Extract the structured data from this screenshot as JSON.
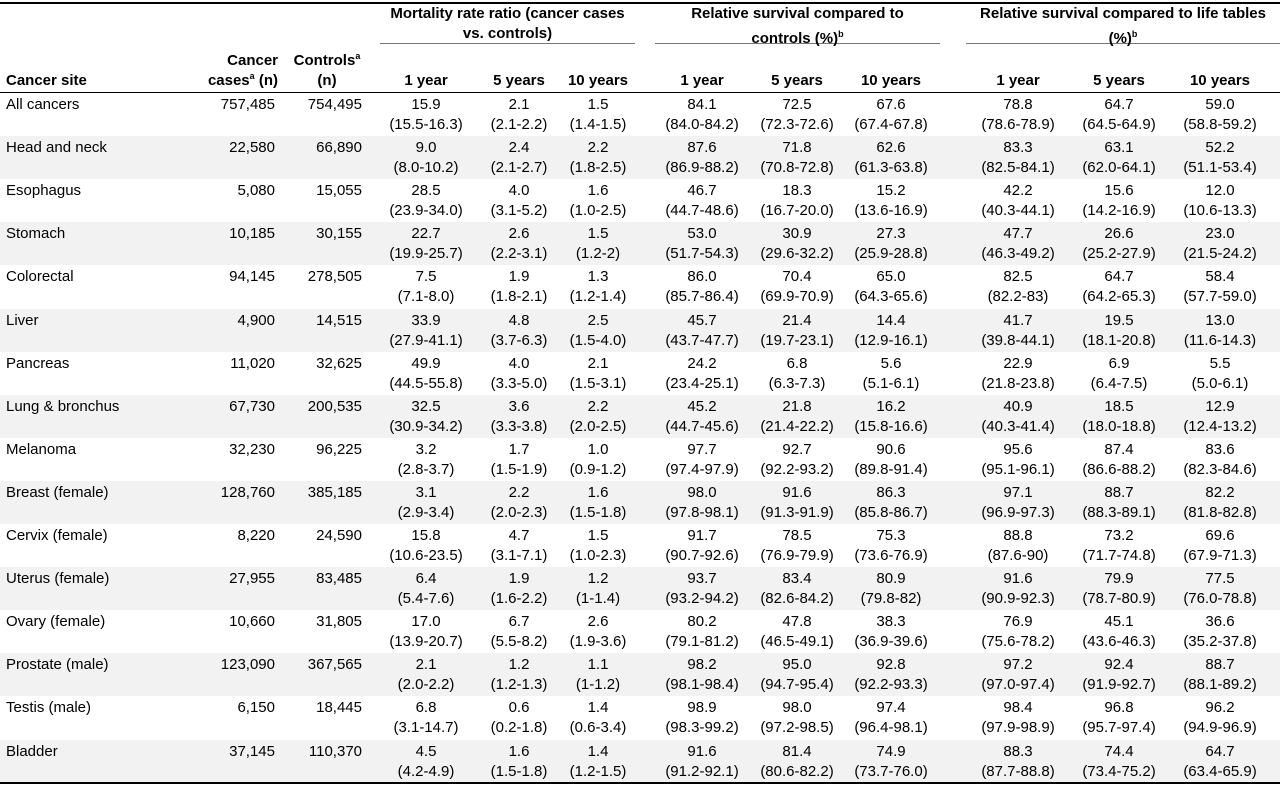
{
  "header": {
    "cancer_site": "Cancer site",
    "cases_line1": "Cancer",
    "cases_line2_pre": "cases",
    "cases_line2_sup": "a",
    "cases_line2_post": " (n)",
    "controls_line1_pre": "Controls",
    "controls_line1_sup": "a",
    "controls_line2": "(n)",
    "groups": [
      {
        "line1": "Mortality rate ratio (cancer cases",
        "line2": "vs. controls)",
        "sup": ""
      },
      {
        "line1": "Relative survival compared to",
        "line2": "controls (%)",
        "sup": "b"
      },
      {
        "line1": "Relative survival compared to life tables",
        "line2": "(%)",
        "sup": "b"
      }
    ],
    "sub": [
      "1 year",
      "5 years",
      "10 years"
    ]
  },
  "rows": [
    {
      "site": "All cancers",
      "cases": "757,485",
      "controls": "754,495",
      "stats": [
        [
          "15.9",
          "(15.5-16.3)"
        ],
        [
          "2.1",
          "(2.1-2.2)"
        ],
        [
          "1.5",
          "(1.4-1.5)"
        ],
        [
          "84.1",
          "(84.0-84.2)"
        ],
        [
          "72.5",
          "(72.3-72.6)"
        ],
        [
          "67.6",
          "(67.4-67.8)"
        ],
        [
          "78.8",
          "(78.6-78.9)"
        ],
        [
          "64.7",
          "(64.5-64.9)"
        ],
        [
          "59.0",
          "(58.8-59.2)"
        ]
      ]
    },
    {
      "site": "Head and neck",
      "cases": "22,580",
      "controls": "66,890",
      "stats": [
        [
          "9.0",
          "(8.0-10.2)"
        ],
        [
          "2.4",
          "(2.1-2.7)"
        ],
        [
          "2.2",
          "(1.8-2.5)"
        ],
        [
          "87.6",
          "(86.9-88.2)"
        ],
        [
          "71.8",
          "(70.8-72.8)"
        ],
        [
          "62.6",
          "(61.3-63.8)"
        ],
        [
          "83.3",
          "(82.5-84.1)"
        ],
        [
          "63.1",
          "(62.0-64.1)"
        ],
        [
          "52.2",
          "(51.1-53.4)"
        ]
      ]
    },
    {
      "site": "Esophagus",
      "cases": "5,080",
      "controls": "15,055",
      "stats": [
        [
          "28.5",
          "(23.9-34.0)"
        ],
        [
          "4.0",
          "(3.1-5.2)"
        ],
        [
          "1.6",
          "(1.0-2.5)"
        ],
        [
          "46.7",
          "(44.7-48.6)"
        ],
        [
          "18.3",
          "(16.7-20.0)"
        ],
        [
          "15.2",
          "(13.6-16.9)"
        ],
        [
          "42.2",
          "(40.3-44.1)"
        ],
        [
          "15.6",
          "(14.2-16.9)"
        ],
        [
          "12.0",
          "(10.6-13.3)"
        ]
      ]
    },
    {
      "site": "Stomach",
      "cases": "10,185",
      "controls": "30,155",
      "stats": [
        [
          "22.7",
          "(19.9-25.7)"
        ],
        [
          "2.6",
          "(2.2-3.1)"
        ],
        [
          "1.5",
          "(1.2-2)"
        ],
        [
          "53.0",
          "(51.7-54.3)"
        ],
        [
          "30.9",
          "(29.6-32.2)"
        ],
        [
          "27.3",
          "(25.9-28.8)"
        ],
        [
          "47.7",
          "(46.3-49.2)"
        ],
        [
          "26.6",
          "(25.2-27.9)"
        ],
        [
          "23.0",
          "(21.5-24.2)"
        ]
      ]
    },
    {
      "site": "Colorectal",
      "cases": "94,145",
      "controls": "278,505",
      "stats": [
        [
          "7.5",
          "(7.1-8.0)"
        ],
        [
          "1.9",
          "(1.8-2.1)"
        ],
        [
          "1.3",
          "(1.2-1.4)"
        ],
        [
          "86.0",
          "(85.7-86.4)"
        ],
        [
          "70.4",
          "(69.9-70.9)"
        ],
        [
          "65.0",
          "(64.3-65.6)"
        ],
        [
          "82.5",
          "(82.2-83)"
        ],
        [
          "64.7",
          "(64.2-65.3)"
        ],
        [
          "58.4",
          "(57.7-59.0)"
        ]
      ]
    },
    {
      "site": "Liver",
      "cases": "4,900",
      "controls": "14,515",
      "stats": [
        [
          "33.9",
          "(27.9-41.1)"
        ],
        [
          "4.8",
          "(3.7-6.3)"
        ],
        [
          "2.5",
          "(1.5-4.0)"
        ],
        [
          "45.7",
          "(43.7-47.7)"
        ],
        [
          "21.4",
          "(19.7-23.1)"
        ],
        [
          "14.4",
          "(12.9-16.1)"
        ],
        [
          "41.7",
          "(39.8-44.1)"
        ],
        [
          "19.5",
          "(18.1-20.8)"
        ],
        [
          "13.0",
          "(11.6-14.3)"
        ]
      ]
    },
    {
      "site": "Pancreas",
      "cases": "11,020",
      "controls": "32,625",
      "stats": [
        [
          "49.9",
          "(44.5-55.8)"
        ],
        [
          "4.0",
          "(3.3-5.0)"
        ],
        [
          "2.1",
          "(1.5-3.1)"
        ],
        [
          "24.2",
          "(23.4-25.1)"
        ],
        [
          "6.8",
          "(6.3-7.3)"
        ],
        [
          "5.6",
          "(5.1-6.1)"
        ],
        [
          "22.9",
          "(21.8-23.8)"
        ],
        [
          "6.9",
          "(6.4-7.5)"
        ],
        [
          "5.5",
          "(5.0-6.1)"
        ]
      ]
    },
    {
      "site": "Lung & bronchus",
      "cases": "67,730",
      "controls": "200,535",
      "stats": [
        [
          "32.5",
          "(30.9-34.2)"
        ],
        [
          "3.6",
          "(3.3-3.8)"
        ],
        [
          "2.2",
          "(2.0-2.5)"
        ],
        [
          "45.2",
          "(44.7-45.6)"
        ],
        [
          "21.8",
          "(21.4-22.2)"
        ],
        [
          "16.2",
          "(15.8-16.6)"
        ],
        [
          "40.9",
          "(40.3-41.4)"
        ],
        [
          "18.5",
          "(18.0-18.8)"
        ],
        [
          "12.9",
          "(12.4-13.2)"
        ]
      ]
    },
    {
      "site": "Melanoma",
      "cases": "32,230",
      "controls": "96,225",
      "stats": [
        [
          "3.2",
          "(2.8-3.7)"
        ],
        [
          "1.7",
          "(1.5-1.9)"
        ],
        [
          "1.0",
          "(0.9-1.2)"
        ],
        [
          "97.7",
          "(97.4-97.9)"
        ],
        [
          "92.7",
          "(92.2-93.2)"
        ],
        [
          "90.6",
          "(89.8-91.4)"
        ],
        [
          "95.6",
          "(95.1-96.1)"
        ],
        [
          "87.4",
          "(86.6-88.2)"
        ],
        [
          "83.6",
          "(82.3-84.6)"
        ]
      ]
    },
    {
      "site": "Breast (female)",
      "cases": "128,760",
      "controls": "385,185",
      "stats": [
        [
          "3.1",
          "(2.9-3.4)"
        ],
        [
          "2.2",
          "(2.0-2.3)"
        ],
        [
          "1.6",
          "(1.5-1.8)"
        ],
        [
          "98.0",
          "(97.8-98.1)"
        ],
        [
          "91.6",
          "(91.3-91.9)"
        ],
        [
          "86.3",
          "(85.8-86.7)"
        ],
        [
          "97.1",
          "(96.9-97.3)"
        ],
        [
          "88.7",
          "(88.3-89.1)"
        ],
        [
          "82.2",
          "(81.8-82.8)"
        ]
      ]
    },
    {
      "site": "Cervix (female)",
      "cases": "8,220",
      "controls": "24,590",
      "stats": [
        [
          "15.8",
          "(10.6-23.5)"
        ],
        [
          "4.7",
          "(3.1-7.1)"
        ],
        [
          "1.5",
          "(1.0-2.3)"
        ],
        [
          "91.7",
          "(90.7-92.6)"
        ],
        [
          "78.5",
          "(76.9-79.9)"
        ],
        [
          "75.3",
          "(73.6-76.9)"
        ],
        [
          "88.8",
          "(87.6-90)"
        ],
        [
          "73.2",
          "(71.7-74.8)"
        ],
        [
          "69.6",
          "(67.9-71.3)"
        ]
      ]
    },
    {
      "site": "Uterus (female)",
      "cases": "27,955",
      "controls": "83,485",
      "stats": [
        [
          "6.4",
          "(5.4-7.6)"
        ],
        [
          "1.9",
          "(1.6-2.2)"
        ],
        [
          "1.2",
          "(1-1.4)"
        ],
        [
          "93.7",
          "(93.2-94.2)"
        ],
        [
          "83.4",
          "(82.6-84.2)"
        ],
        [
          "80.9",
          "(79.8-82)"
        ],
        [
          "91.6",
          "(90.9-92.3)"
        ],
        [
          "79.9",
          "(78.7-80.9)"
        ],
        [
          "77.5",
          "(76.0-78.8)"
        ]
      ]
    },
    {
      "site": "Ovary (female)",
      "cases": "10,660",
      "controls": "31,805",
      "stats": [
        [
          "17.0",
          "(13.9-20.7)"
        ],
        [
          "6.7",
          "(5.5-8.2)"
        ],
        [
          "2.6",
          "(1.9-3.6)"
        ],
        [
          "80.2",
          "(79.1-81.2)"
        ],
        [
          "47.8",
          "(46.5-49.1)"
        ],
        [
          "38.3",
          "(36.9-39.6)"
        ],
        [
          "76.9",
          "(75.6-78.2)"
        ],
        [
          "45.1",
          "(43.6-46.3)"
        ],
        [
          "36.6",
          "(35.2-37.8)"
        ]
      ]
    },
    {
      "site": "Prostate (male)",
      "cases": "123,090",
      "controls": "367,565",
      "stats": [
        [
          "2.1",
          "(2.0-2.2)"
        ],
        [
          "1.2",
          "(1.2-1.3)"
        ],
        [
          "1.1",
          "(1-1.2)"
        ],
        [
          "98.2",
          "(98.1-98.4)"
        ],
        [
          "95.0",
          "(94.7-95.4)"
        ],
        [
          "92.8",
          "(92.2-93.3)"
        ],
        [
          "97.2",
          "(97.0-97.4)"
        ],
        [
          "92.4",
          "(91.9-92.7)"
        ],
        [
          "88.7",
          "(88.1-89.2)"
        ]
      ]
    },
    {
      "site": "Testis (male)",
      "cases": "6,150",
      "controls": "18,445",
      "stats": [
        [
          "6.8",
          "(3.1-14.7)"
        ],
        [
          "0.6",
          "(0.2-1.8)"
        ],
        [
          "1.4",
          "(0.6-3.4)"
        ],
        [
          "98.9",
          "(98.3-99.2)"
        ],
        [
          "98.0",
          "(97.2-98.5)"
        ],
        [
          "97.4",
          "(96.4-98.1)"
        ],
        [
          "98.4",
          "(97.9-98.9)"
        ],
        [
          "96.8",
          "(95.7-97.4)"
        ],
        [
          "96.2",
          "(94.9-96.9)"
        ]
      ]
    },
    {
      "site": "Bladder",
      "cases": "37,145",
      "controls": "110,370",
      "stats": [
        [
          "4.5",
          "(4.2-4.9)"
        ],
        [
          "1.6",
          "(1.5-1.8)"
        ],
        [
          "1.4",
          "(1.2-1.5)"
        ],
        [
          "91.6",
          "(91.2-92.1)"
        ],
        [
          "81.4",
          "(80.6-82.2)"
        ],
        [
          "74.9",
          "(73.7-76.0)"
        ],
        [
          "88.3",
          "(87.7-88.8)"
        ],
        [
          "74.4",
          "(73.4-75.2)"
        ],
        [
          "64.7",
          "(63.4-65.9)"
        ]
      ]
    }
  ]
}
